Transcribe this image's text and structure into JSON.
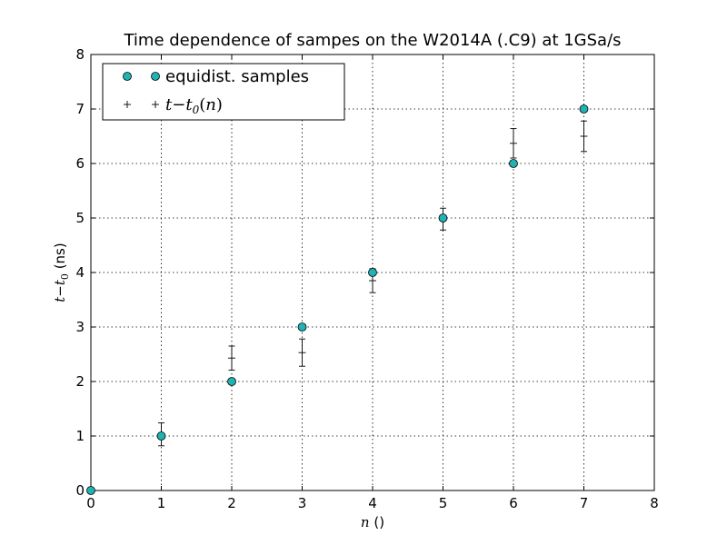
{
  "chart_data": {
    "type": "scatter",
    "title": "Time dependence of sampes on the W2014A (.C9) at 1GSa/s",
    "xlabel": "n ()",
    "ylabel": "t−t0 (ns)",
    "xlim": [
      0,
      8
    ],
    "ylim": [
      0,
      8
    ],
    "xticks": [
      "0",
      "1",
      "2",
      "3",
      "4",
      "5",
      "6",
      "7",
      "8"
    ],
    "yticks": [
      "0",
      "1",
      "2",
      "3",
      "4",
      "5",
      "6",
      "7",
      "8"
    ],
    "grid": true,
    "legend_position": "top-left",
    "series": [
      {
        "name": "equidist. samples",
        "marker": "circle",
        "color": "#1fb3b3",
        "x": [
          0,
          1,
          2,
          3,
          4,
          5,
          6,
          7
        ],
        "y": [
          0,
          1,
          2,
          3,
          4,
          5,
          6,
          7
        ]
      },
      {
        "name": "t−t0(n)",
        "marker": "plus-errorbar",
        "color": "#000000",
        "x": [
          1,
          2,
          3,
          4,
          5,
          6,
          7
        ],
        "y": [
          1.03,
          2.43,
          2.53,
          3.85,
          4.98,
          6.37,
          6.5
        ],
        "yerr": [
          0.21,
          0.22,
          0.25,
          0.22,
          0.2,
          0.27,
          0.28
        ]
      }
    ]
  }
}
